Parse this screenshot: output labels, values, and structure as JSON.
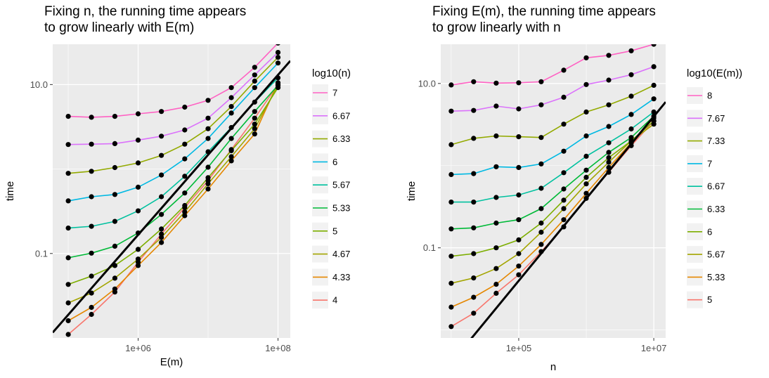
{
  "chart_data": [
    {
      "type": "line",
      "title": "Fixing n, the running time appears to grow linearly with E(m)",
      "title_lines": [
        "Fixing n, the running time appears",
        "to grow linearly with E(m)"
      ],
      "xlabel": "E(m)",
      "ylabel": "time",
      "x_scale": "log10",
      "y_scale": "log10",
      "xlim": [
        60000,
        150000000
      ],
      "ylim": [
        0.01,
        30
      ],
      "x_ticks": [
        {
          "value": 1000000,
          "label": "1e+06"
        },
        {
          "value": 100000000,
          "label": "1e+08"
        }
      ],
      "y_ticks": [
        {
          "value": 0.1,
          "label": "0.1"
        },
        {
          "value": 10,
          "label": "10.0"
        }
      ],
      "grid": true,
      "legend": {
        "title": "log10(n)",
        "position": "right"
      },
      "x": [
        100000,
        215000,
        464000,
        1000000,
        2150000,
        4640000,
        10000000,
        21500000,
        46400000,
        100000000
      ],
      "series": [
        {
          "name": "7",
          "color": "#FF61C3",
          "values": [
            4.2,
            4.1,
            4.2,
            4.5,
            4.8,
            5.4,
            6.5,
            9.2,
            16,
            31
          ]
        },
        {
          "name": "6.67",
          "color": "#DB72FB",
          "values": [
            1.95,
            1.97,
            2.0,
            2.2,
            2.45,
            2.9,
            4.0,
            7.0,
            13,
            24
          ]
        },
        {
          "name": "6.33",
          "color": "#93AA00",
          "values": [
            0.89,
            0.94,
            1.04,
            1.18,
            1.45,
            1.97,
            3.0,
            5.5,
            11,
            21
          ]
        },
        {
          "name": "6",
          "color": "#00B9E3",
          "values": [
            0.42,
            0.47,
            0.5,
            0.61,
            0.85,
            1.32,
            2.3,
            4.6,
            9.2,
            18
          ]
        },
        {
          "name": "5.67",
          "color": "#00C19F",
          "values": [
            0.2,
            0.21,
            0.24,
            0.32,
            0.47,
            0.82,
            1.6,
            3.1,
            6.2,
            12
          ]
        },
        {
          "name": "5.33",
          "color": "#00BA38",
          "values": [
            0.089,
            0.101,
            0.122,
            0.175,
            0.29,
            0.52,
            1.05,
            2.3,
            4.8,
            9.8
          ]
        },
        {
          "name": "5",
          "color": "#7CAE00",
          "values": [
            0.043,
            0.054,
            0.072,
            0.112,
            0.195,
            0.37,
            0.79,
            1.65,
            3.4,
            9.2
          ]
        },
        {
          "name": "4.67",
          "color": "#A3A500",
          "values": [
            0.026,
            0.034,
            0.051,
            0.086,
            0.155,
            0.31,
            0.67,
            1.4,
            3.0,
            9.9
          ]
        },
        {
          "name": "4.33",
          "color": "#E58700",
          "values": [
            0.016,
            0.023,
            0.038,
            0.072,
            0.135,
            0.28,
            0.58,
            1.25,
            2.6,
            10.5
          ]
        },
        {
          "name": "4",
          "color": "#F8766D",
          "values": [
            0.011,
            0.019,
            0.035,
            0.079,
            0.17,
            0.35,
            0.73,
            1.7,
            4.0,
            10.0
          ]
        }
      ],
      "reference_line": {
        "x": [
          60000,
          150000000
        ],
        "y": [
          0.0116,
          19.1
        ],
        "color": "#000000"
      }
    },
    {
      "type": "line",
      "title": "Fixing E(m), the running time appears to grow linearly with n",
      "title_lines": [
        "Fixing E(m), the running time appears",
        "to grow linearly with n"
      ],
      "xlabel": "n",
      "ylabel": "time",
      "x_scale": "log10",
      "y_scale": "log10",
      "xlim": [
        7000,
        15000000
      ],
      "ylim": [
        0.008,
        30
      ],
      "x_ticks": [
        {
          "value": 100000,
          "label": "1e+05"
        },
        {
          "value": 10000000,
          "label": "1e+07"
        }
      ],
      "y_ticks": [
        {
          "value": 0.1,
          "label": "0.1"
        },
        {
          "value": 10,
          "label": "10.0"
        }
      ],
      "grid": true,
      "legend": {
        "title": "log10(E(m))",
        "position": "right"
      },
      "x": [
        10000,
        21500,
        46400,
        100000,
        215000,
        464000,
        1000000,
        2150000,
        4640000,
        10000000
      ],
      "series": [
        {
          "name": "8",
          "color": "#FF61C3",
          "values": [
            9.6,
            10.5,
            10.1,
            10.2,
            10.5,
            14.5,
            20.5,
            22.0,
            25.0,
            30.0
          ]
        },
        {
          "name": "7.67",
          "color": "#DB72FB",
          "values": [
            4.6,
            4.7,
            5.3,
            4.9,
            5.5,
            6.8,
            9.7,
            11.0,
            12.8,
            16.0
          ]
        },
        {
          "name": "7.33",
          "color": "#93AA00",
          "values": [
            1.8,
            2.15,
            2.3,
            2.25,
            2.2,
            3.2,
            4.5,
            5.5,
            7.0,
            9.5
          ]
        },
        {
          "name": "7",
          "color": "#00B9E3",
          "values": [
            0.78,
            0.8,
            0.97,
            0.95,
            1.05,
            1.5,
            2.3,
            3.0,
            4.2,
            6.5
          ]
        },
        {
          "name": "6.67",
          "color": "#00C19F",
          "values": [
            0.36,
            0.36,
            0.41,
            0.44,
            0.53,
            0.82,
            1.3,
            1.9,
            2.8,
            4.5
          ]
        },
        {
          "name": "6.33",
          "color": "#00BA38",
          "values": [
            0.17,
            0.175,
            0.2,
            0.22,
            0.3,
            0.52,
            0.88,
            1.45,
            2.2,
            4.0
          ]
        },
        {
          "name": "6",
          "color": "#7CAE00",
          "values": [
            0.079,
            0.085,
            0.1,
            0.125,
            0.2,
            0.38,
            0.72,
            1.25,
            2.0,
            3.5
          ]
        },
        {
          "name": "5.67",
          "color": "#A3A500",
          "values": [
            0.037,
            0.043,
            0.056,
            0.085,
            0.155,
            0.3,
            0.6,
            1.1,
            2.0,
            3.2
          ]
        },
        {
          "name": "5.33",
          "color": "#E58700",
          "values": [
            0.019,
            0.025,
            0.036,
            0.06,
            0.11,
            0.22,
            0.46,
            0.95,
            1.9,
            3.8
          ]
        },
        {
          "name": "5",
          "color": "#F8766D",
          "values": [
            0.011,
            0.016,
            0.028,
            0.047,
            0.09,
            0.18,
            0.4,
            0.83,
            1.75,
            3.5
          ]
        }
      ],
      "reference_line": {
        "x": [
          7000,
          15000000
        ],
        "y": [
          0.00278,
          5.95
        ],
        "color": "#000000"
      }
    }
  ]
}
